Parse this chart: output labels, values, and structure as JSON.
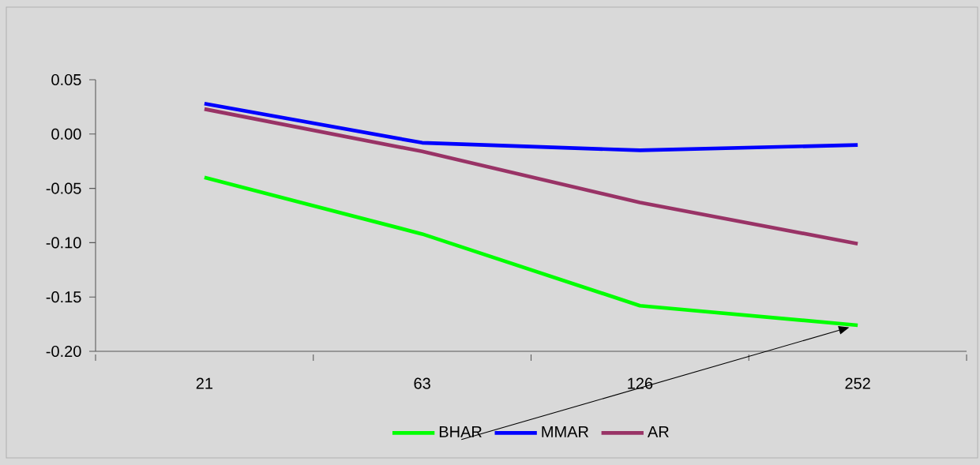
{
  "chart_data": {
    "type": "line",
    "categories": [
      "21",
      "63",
      "126",
      "252"
    ],
    "series": [
      {
        "name": "BHAR",
        "color": "#00ff00",
        "values": [
          -0.04,
          -0.092,
          -0.158,
          -0.176
        ]
      },
      {
        "name": "MMAR",
        "color": "#0000ff",
        "values": [
          0.028,
          -0.008,
          -0.015,
          -0.01
        ]
      },
      {
        "name": "AR",
        "color": "#993366",
        "values": [
          0.023,
          -0.016,
          -0.063,
          -0.101
        ]
      }
    ],
    "ylim": [
      -0.2,
      0.05
    ],
    "yticks": [
      {
        "value": -0.2,
        "label": "-0.20"
      },
      {
        "value": -0.15,
        "label": "-0.15"
      },
      {
        "value": -0.1,
        "label": "-0.10"
      },
      {
        "value": -0.05,
        "label": "-0.05"
      },
      {
        "value": 0,
        "label": "0.00"
      },
      {
        "value": 0.05,
        "label": "0.05"
      }
    ],
    "grid": false,
    "legend": "bottom",
    "marker": "none",
    "line_style": "solid"
  }
}
